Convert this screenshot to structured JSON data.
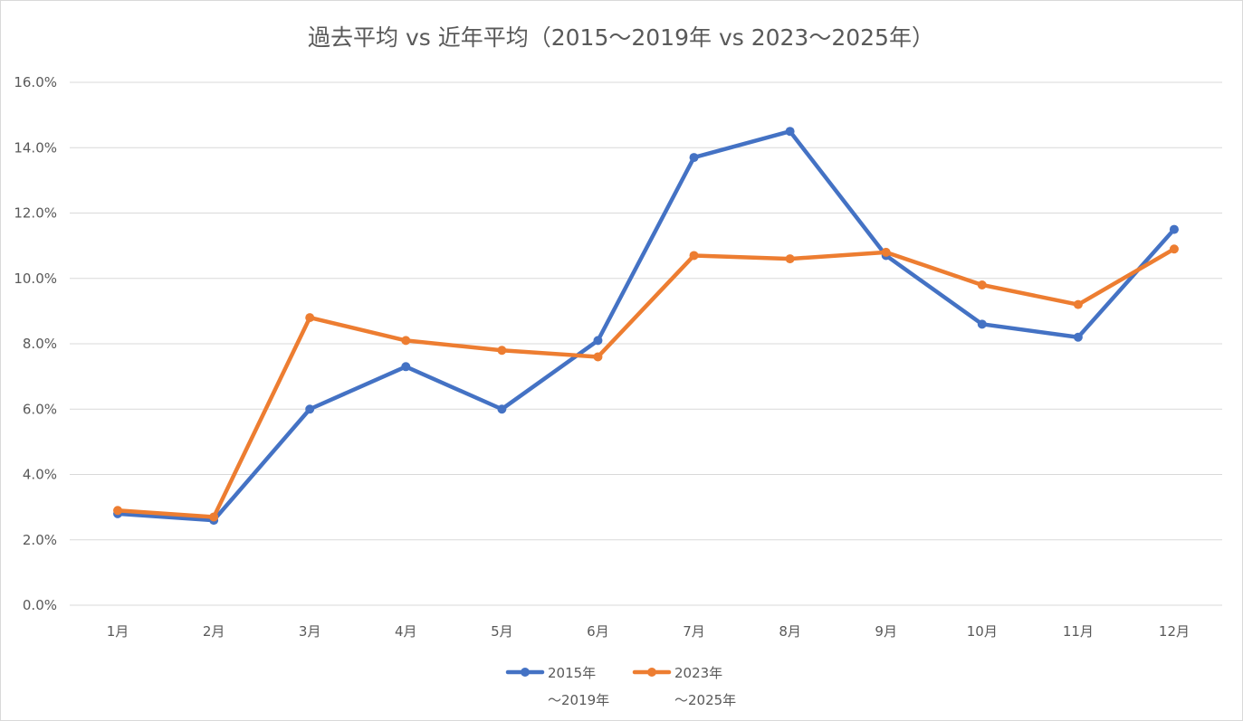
{
  "chart_data": {
    "type": "line",
    "title": "過去平均 vs 近年平均（2015～2019年 vs 2023～2025年）",
    "xlabel": "",
    "ylabel": "",
    "categories": [
      "1月",
      "2月",
      "3月",
      "4月",
      "5月",
      "6月",
      "7月",
      "8月",
      "9月",
      "10月",
      "11月",
      "12月"
    ],
    "ylim": [
      0,
      16
    ],
    "yticks": [
      "0.0%",
      "2.0%",
      "4.0%",
      "6.0%",
      "8.0%",
      "10.0%",
      "12.0%",
      "14.0%",
      "16.0%"
    ],
    "grid": true,
    "legend_position": "bottom",
    "series": [
      {
        "name": "2015年～2019年",
        "legend_lines": [
          "2015年",
          "～2019年"
        ],
        "color": "#4472c4",
        "values": [
          2.8,
          2.6,
          6.0,
          7.3,
          6.0,
          8.1,
          13.7,
          14.5,
          10.7,
          8.6,
          8.2,
          11.5
        ]
      },
      {
        "name": "2023年～2025年",
        "legend_lines": [
          "2023年",
          "～2025年"
        ],
        "color": "#ed7d31",
        "values": [
          2.9,
          2.7,
          8.8,
          8.1,
          7.8,
          7.6,
          10.7,
          10.6,
          10.8,
          9.8,
          9.2,
          10.9
        ]
      }
    ]
  }
}
